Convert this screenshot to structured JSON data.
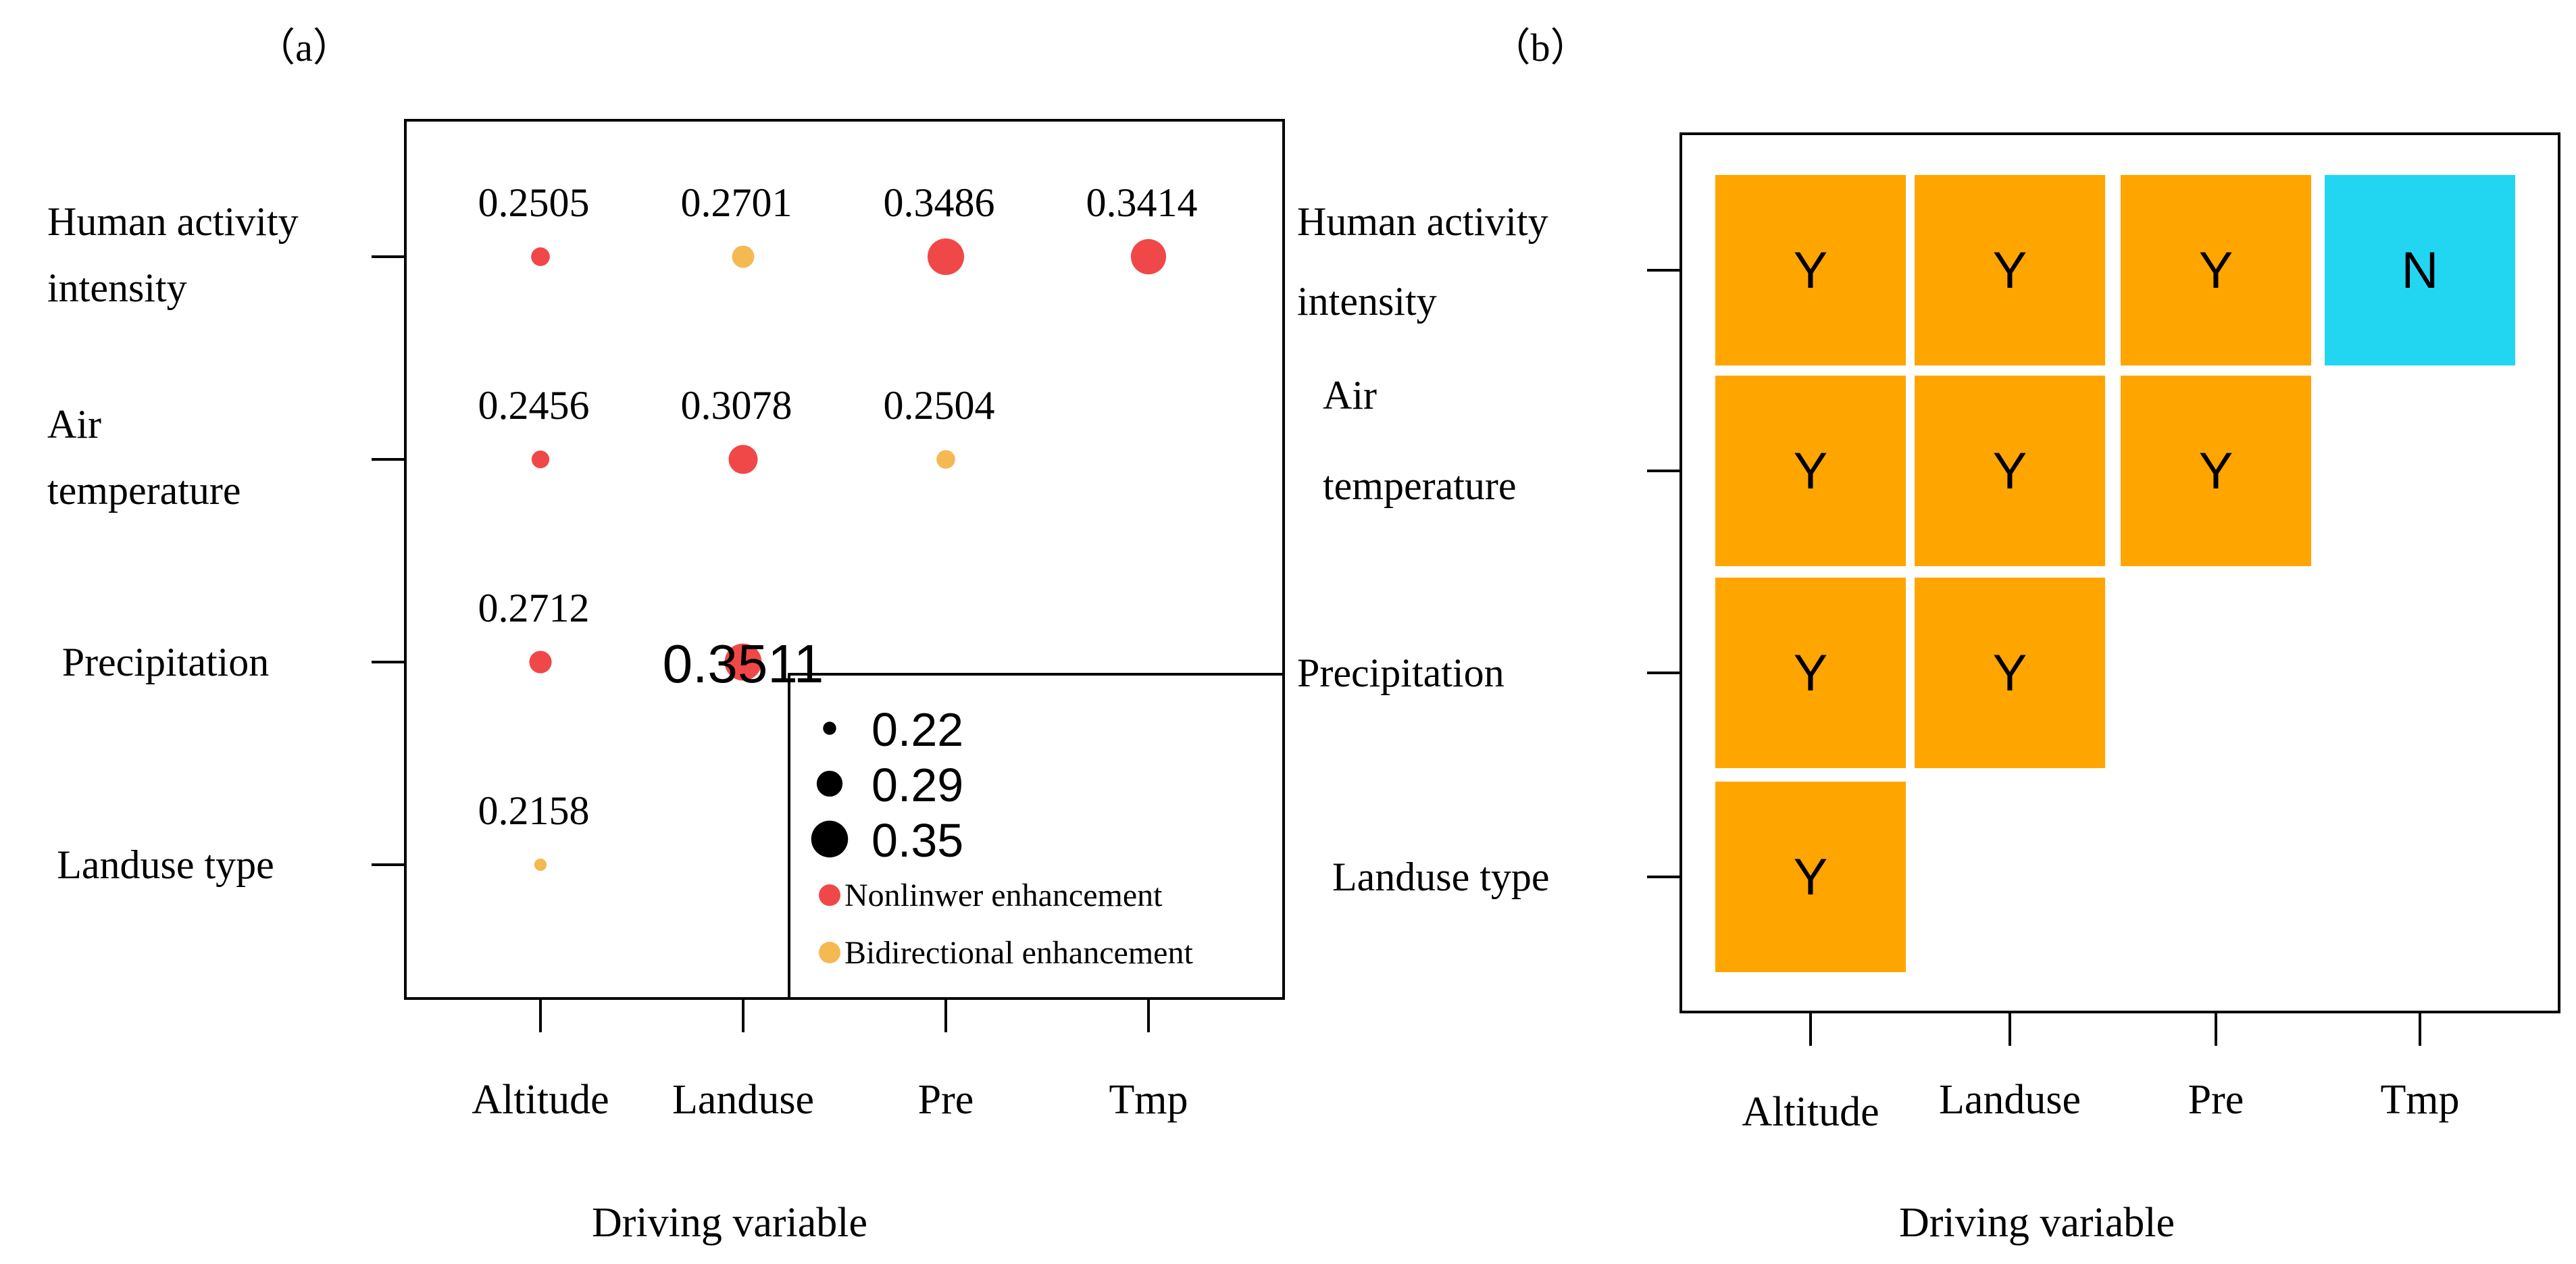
{
  "panel_a": {
    "label": "（a）",
    "chart_data": {
      "type": "scatter",
      "title": "",
      "xlabel": "Driving variable",
      "ylabel": "",
      "x_categories": [
        "Altitude",
        "Landuse",
        "Pre",
        "Tmp"
      ],
      "y_categories": [
        [
          "Human activity",
          "intensity"
        ],
        [
          "Air",
          "temperature"
        ],
        [
          "Precipitation"
        ],
        [
          "Landuse type"
        ]
      ],
      "points": [
        {
          "x": "Altitude",
          "y": "Human activity intensity",
          "value": 0.2505,
          "label": "0.2505",
          "type": "nonlinear"
        },
        {
          "x": "Landuse",
          "y": "Human activity intensity",
          "value": 0.2701,
          "label": "0.2701",
          "type": "bidirectional"
        },
        {
          "x": "Pre",
          "y": "Human activity intensity",
          "value": 0.3486,
          "label": "0.3486",
          "type": "nonlinear"
        },
        {
          "x": "Tmp",
          "y": "Human activity intensity",
          "value": 0.3414,
          "label": "0.3414",
          "type": "nonlinear"
        },
        {
          "x": "Altitude",
          "y": "Air temperature",
          "value": 0.2456,
          "label": "0.2456",
          "type": "nonlinear"
        },
        {
          "x": "Landuse",
          "y": "Air temperature",
          "value": 0.3078,
          "label": "0.3078",
          "type": "nonlinear"
        },
        {
          "x": "Pre",
          "y": "Air temperature",
          "value": 0.2504,
          "label": "0.2504",
          "type": "bidirectional"
        },
        {
          "x": "Altitude",
          "y": "Precipitation",
          "value": 0.2712,
          "label": "0.2712",
          "type": "nonlinear"
        },
        {
          "x": "Landuse",
          "y": "Precipitation",
          "value": 0.3511,
          "label": "0.3511",
          "type": "nonlinear"
        },
        {
          "x": "Altitude",
          "y": "Landuse type",
          "value": 0.2158,
          "label": "0.2158",
          "type": "bidirectional"
        }
      ],
      "legend": {
        "sizes": [
          {
            "value": 0.22,
            "label": "0.22"
          },
          {
            "value": 0.29,
            "label": "0.29"
          },
          {
            "value": 0.35,
            "label": "0.35"
          }
        ],
        "types": [
          {
            "key": "nonlinear",
            "label": "Nonlinwer enhancement"
          },
          {
            "key": "bidirectional",
            "label": "Bidirectional enhancement"
          }
        ]
      }
    }
  },
  "panel_b": {
    "label": "（b）",
    "chart_data": {
      "type": "heatmap",
      "title": "",
      "xlabel": "Driving variable",
      "ylabel": "",
      "x_categories": [
        "Altitude",
        "Landuse",
        "Pre",
        "Tmp"
      ],
      "y_categories": [
        [
          "Human activity",
          "intensity"
        ],
        [
          "Air",
          "temperature"
        ],
        [
          "Precipitation"
        ],
        [
          "Landuse type"
        ]
      ],
      "cells": [
        {
          "x": "Altitude",
          "y": "Human activity intensity",
          "value": "Y"
        },
        {
          "x": "Landuse",
          "y": "Human activity intensity",
          "value": "Y"
        },
        {
          "x": "Pre",
          "y": "Human activity intensity",
          "value": "Y"
        },
        {
          "x": "Tmp",
          "y": "Human activity intensity",
          "value": "N"
        },
        {
          "x": "Altitude",
          "y": "Air temperature",
          "value": "Y"
        },
        {
          "x": "Landuse",
          "y": "Air temperature",
          "value": "Y"
        },
        {
          "x": "Pre",
          "y": "Air temperature",
          "value": "Y"
        },
        {
          "x": "Altitude",
          "y": "Precipitation",
          "value": "Y"
        },
        {
          "x": "Landuse",
          "y": "Precipitation",
          "value": "Y"
        },
        {
          "x": "Altitude",
          "y": "Landuse type",
          "value": "Y"
        }
      ]
    }
  },
  "colors": {
    "nonlinear": "#f04848",
    "bidirectional": "#f5b952",
    "cell_yes": "#ffa500",
    "cell_no": "#22d6f2",
    "axis": "#000000",
    "legend_marker": "#000000"
  }
}
